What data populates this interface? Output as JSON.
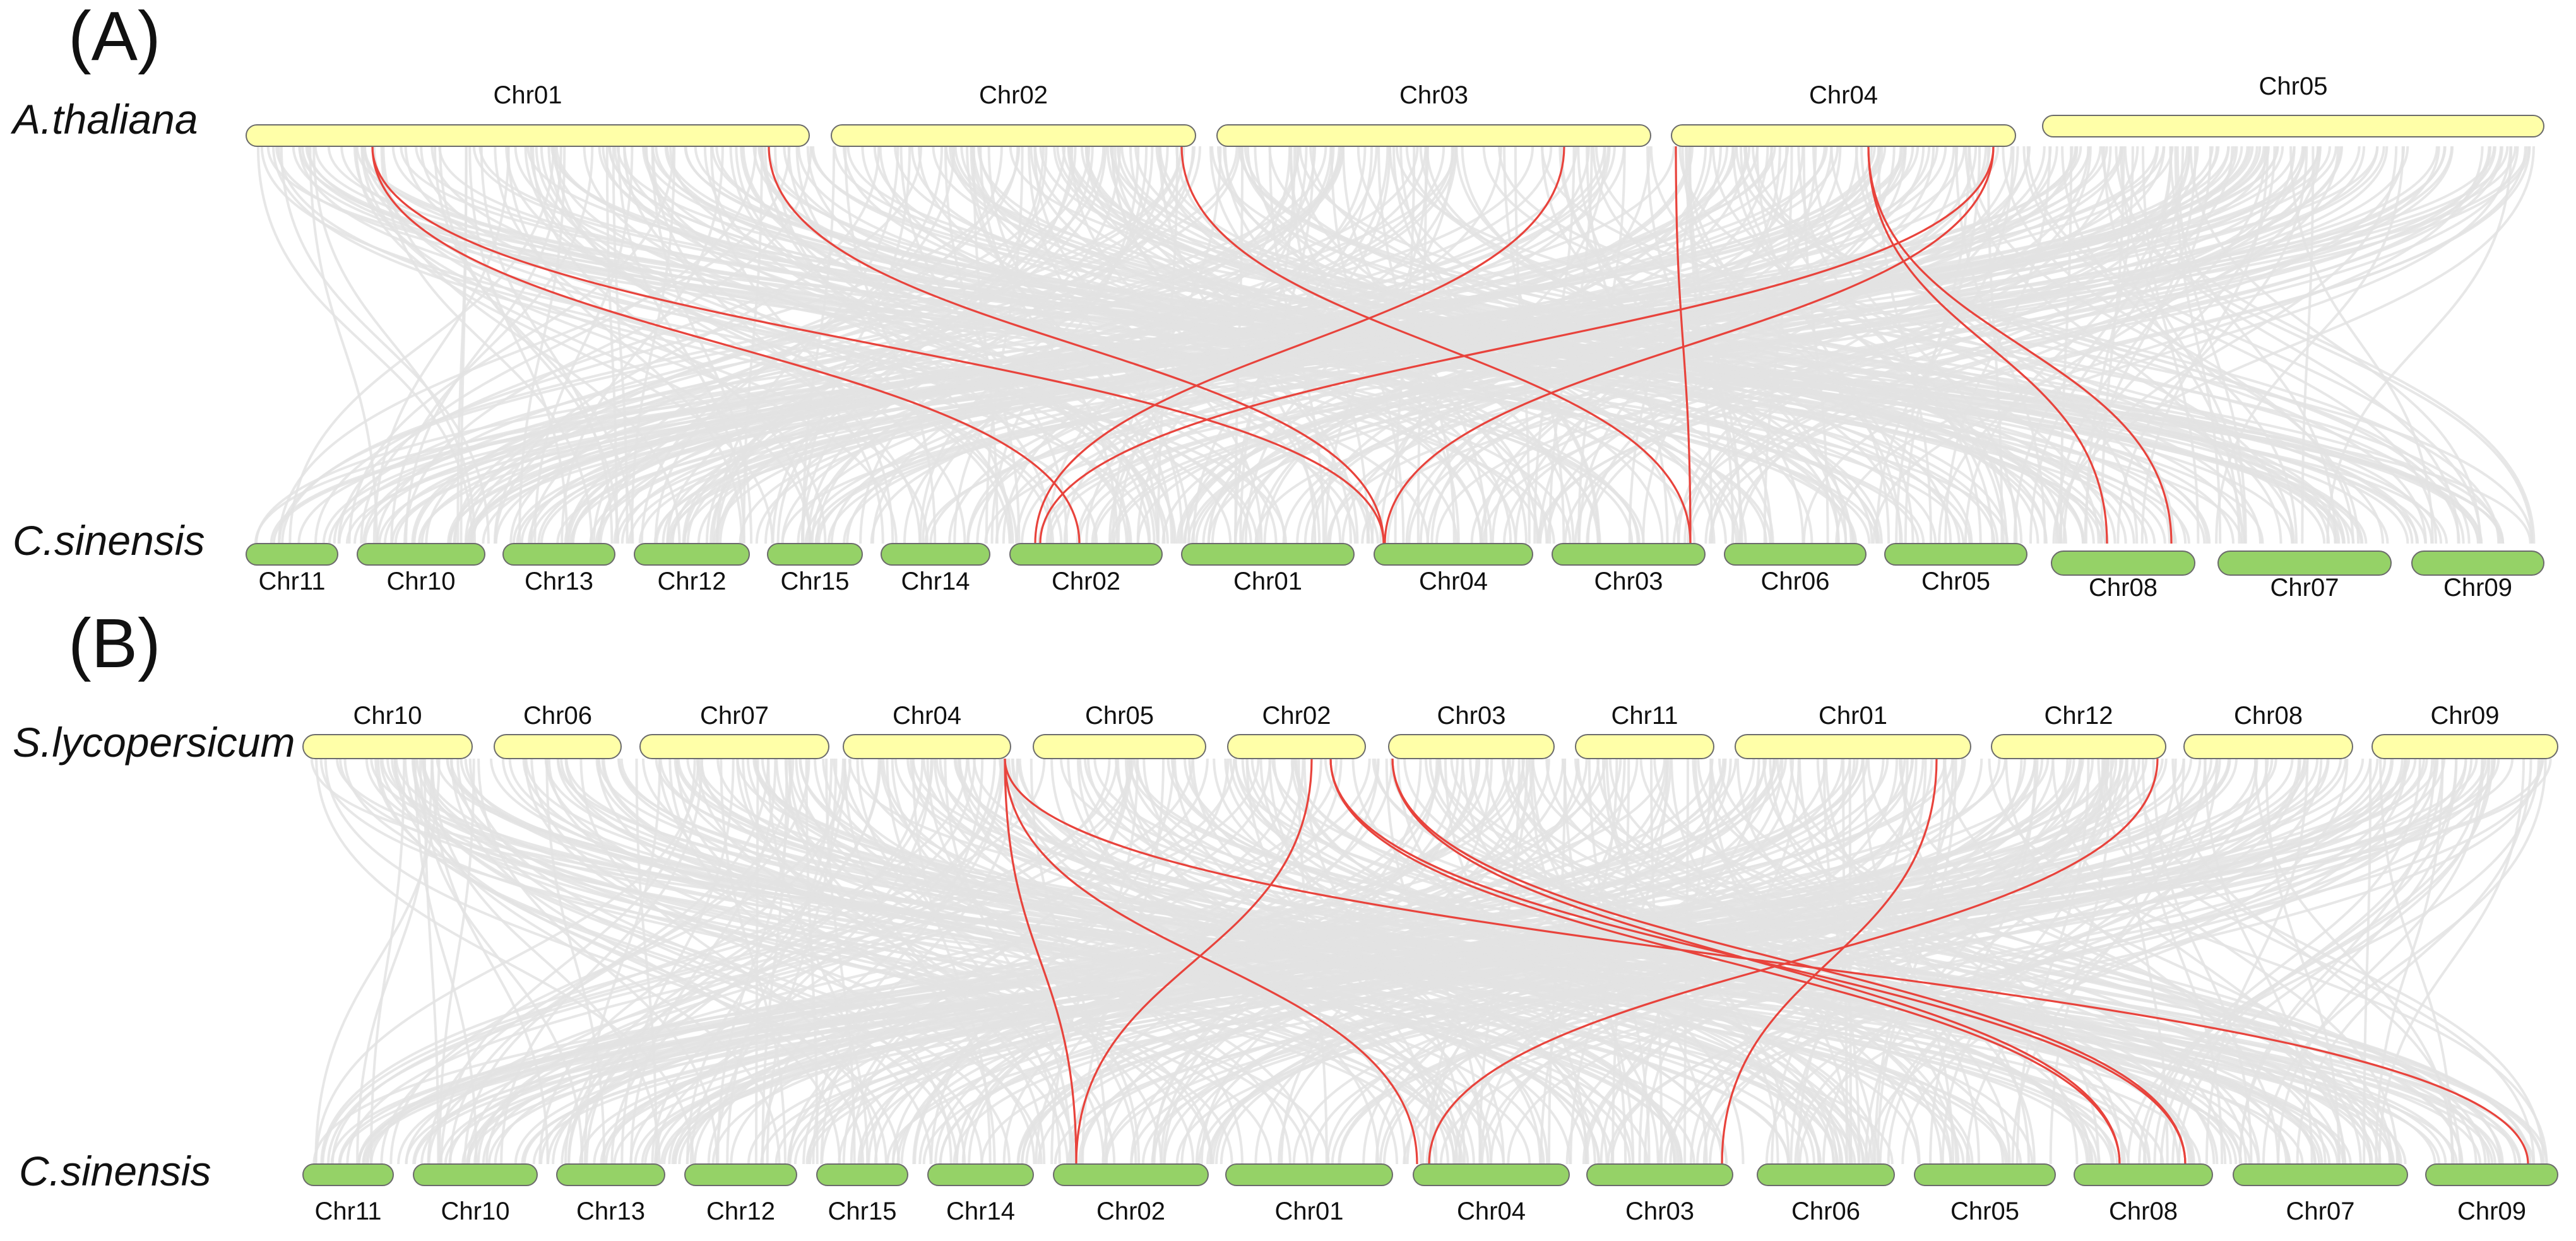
{
  "colors": {
    "top_chromosome_fill": "#ffffa8",
    "bottom_chromosome_fill": "#95d267",
    "chromosome_stroke": "#6b6b6b",
    "background_link": "#e3e3e3",
    "highlight_link": "#e8433c"
  },
  "panels": [
    {
      "id": "A",
      "label": "(A)",
      "top_species": "A.thaliana",
      "bottom_species": "C.sinensis",
      "top_chromosomes": [
        "Chr01",
        "Chr02",
        "Chr03",
        "Chr04",
        "Chr05"
      ],
      "bottom_chromosomes": [
        "Chr11",
        "Chr10",
        "Chr13",
        "Chr12",
        "Chr15",
        "Chr14",
        "Chr02",
        "Chr01",
        "Chr04",
        "Chr03",
        "Chr06",
        "Chr05",
        "Chr08",
        "Chr07",
        "Chr09"
      ],
      "highlighted_links": [
        {
          "from": "Chr01",
          "to": "Chr02"
        },
        {
          "from": "Chr01",
          "to": "Chr04"
        },
        {
          "from": "Chr01",
          "to": "Chr04"
        },
        {
          "from": "Chr02",
          "to": "Chr03"
        },
        {
          "from": "Chr03",
          "to": "Chr02"
        },
        {
          "from": "Chr04",
          "to": "Chr03"
        },
        {
          "from": "Chr04",
          "to": "Chr02"
        },
        {
          "from": "Chr04",
          "to": "Chr04"
        },
        {
          "from": "Chr04",
          "to": "Chr08"
        },
        {
          "from": "Chr04",
          "to": "Chr08"
        }
      ]
    },
    {
      "id": "B",
      "label": "(B)",
      "top_species": "S.lycopersicum",
      "bottom_species": "C.sinensis",
      "top_chromosomes": [
        "Chr10",
        "Chr06",
        "Chr07",
        "Chr04",
        "Chr05",
        "Chr02",
        "Chr03",
        "Chr11",
        "Chr01",
        "Chr12",
        "Chr08",
        "Chr09"
      ],
      "bottom_chromosomes": [
        "Chr11",
        "Chr10",
        "Chr13",
        "Chr12",
        "Chr15",
        "Chr14",
        "Chr02",
        "Chr01",
        "Chr04",
        "Chr03",
        "Chr06",
        "Chr05",
        "Chr08",
        "Chr07",
        "Chr09"
      ],
      "highlighted_links": [
        {
          "from": "Chr04",
          "to": "Chr02"
        },
        {
          "from": "Chr04",
          "to": "Chr04"
        },
        {
          "from": "Chr04",
          "to": "Chr09"
        },
        {
          "from": "Chr02",
          "to": "Chr02"
        },
        {
          "from": "Chr02",
          "to": "Chr08"
        },
        {
          "from": "Chr02",
          "to": "Chr08"
        },
        {
          "from": "Chr03",
          "to": "Chr08"
        },
        {
          "from": "Chr03",
          "to": "Chr08"
        },
        {
          "from": "Chr01",
          "to": "Chr03"
        },
        {
          "from": "Chr12",
          "to": "Chr04"
        }
      ]
    }
  ]
}
